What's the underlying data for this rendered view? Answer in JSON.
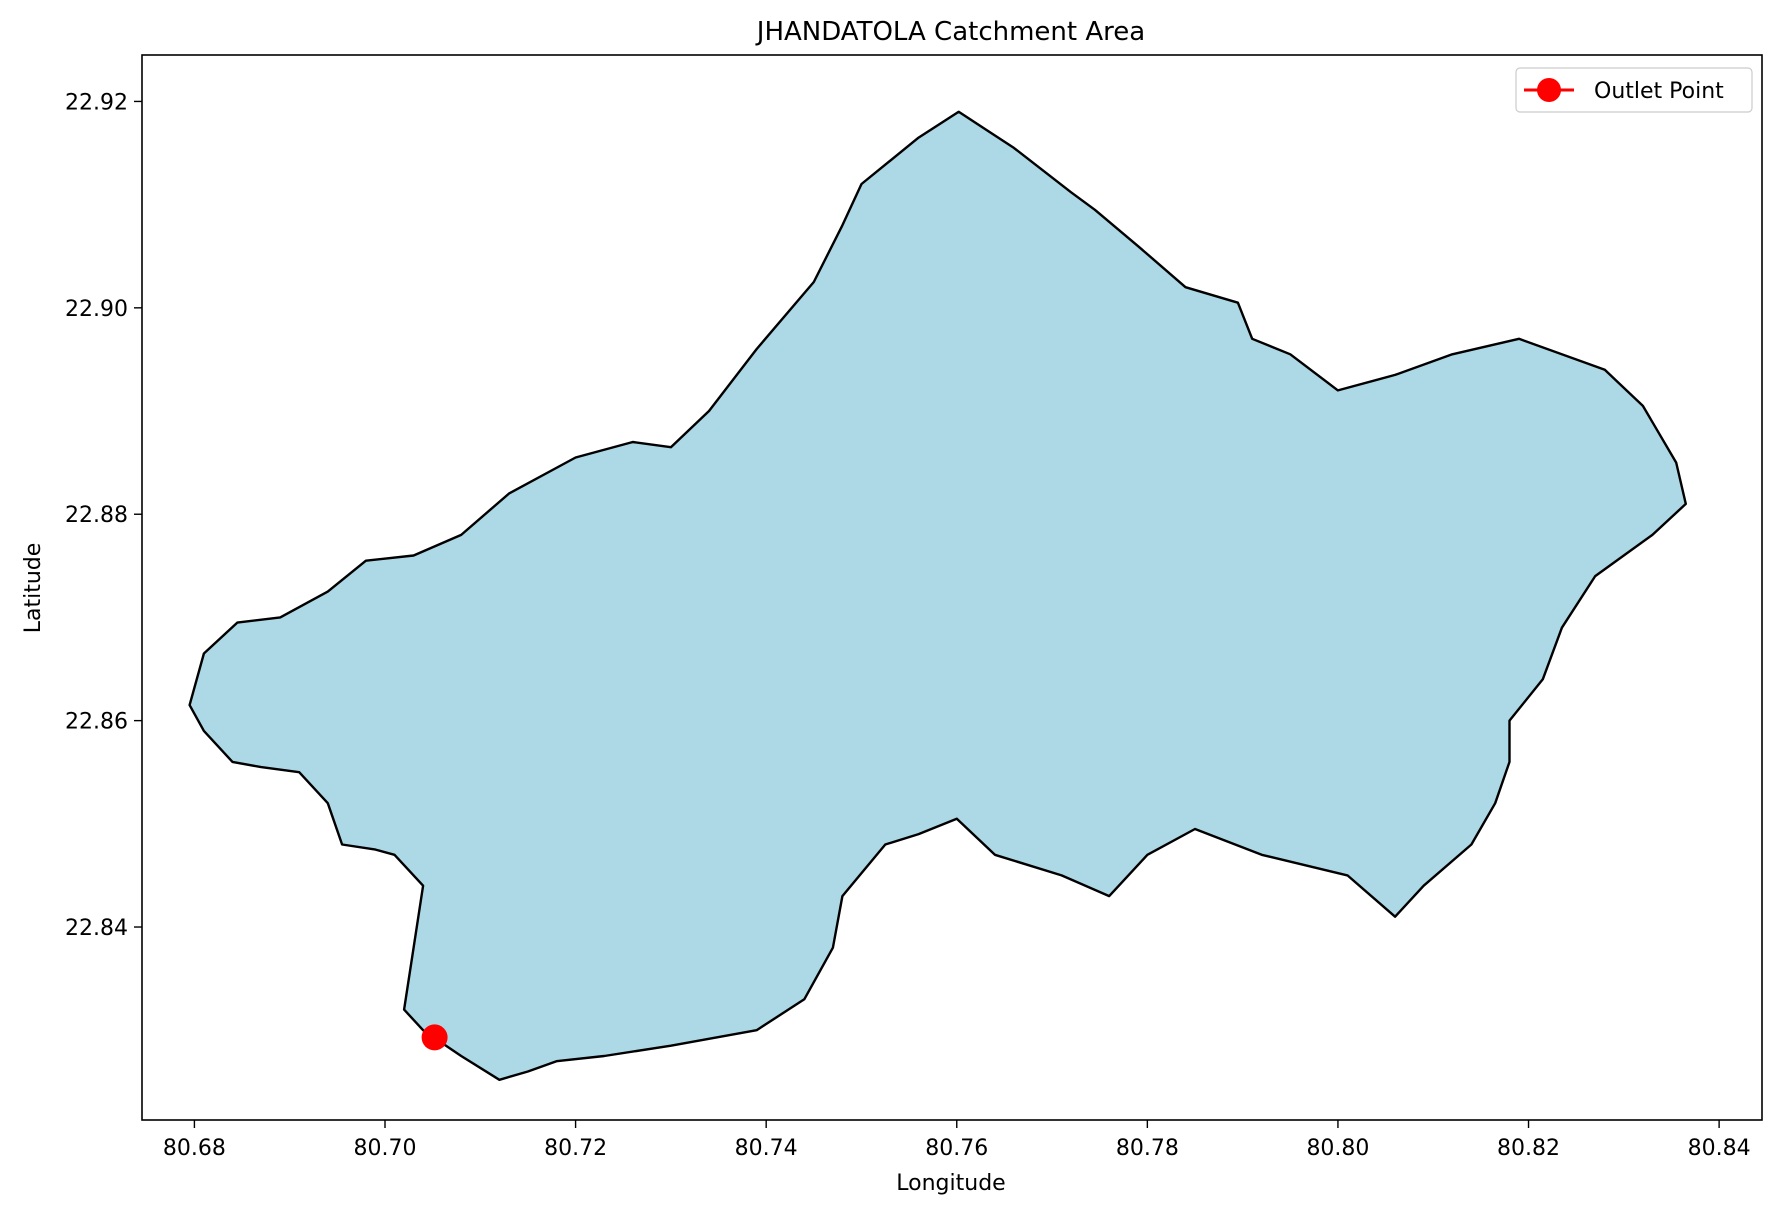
{
  "chart_data": {
    "type": "map",
    "title": "JHANDATOLA Catchment Area",
    "xlabel": "Longitude",
    "ylabel": "Latitude",
    "xlim": [
      80.6745,
      80.8445
    ],
    "ylim": [
      22.8213,
      22.9245
    ],
    "x_ticks": [
      80.68,
      80.7,
      80.72,
      80.74,
      80.76,
      80.78,
      80.8,
      80.82,
      80.84
    ],
    "x_tick_labels": [
      "80.68",
      "80.70",
      "80.72",
      "80.74",
      "80.76",
      "80.78",
      "80.80",
      "80.82",
      "80.84"
    ],
    "y_ticks": [
      22.84,
      22.86,
      22.88,
      22.9,
      22.92
    ],
    "y_tick_labels": [
      "22.84",
      "22.86",
      "22.88",
      "22.90",
      "22.92"
    ],
    "grid": false,
    "legend": {
      "placement": "top-right",
      "entries": [
        "Outlet Point"
      ]
    },
    "colors": {
      "catchment_fill": "#add8e6",
      "boundary": "#000000",
      "outlet": "#ff0000"
    },
    "catchment_boundary": [
      [
        80.7602,
        22.919
      ],
      [
        80.766,
        22.9155
      ],
      [
        80.772,
        22.9112
      ],
      [
        80.7745,
        22.9095
      ],
      [
        80.779,
        22.906
      ],
      [
        80.784,
        22.902
      ],
      [
        80.7895,
        22.9005
      ],
      [
        80.791,
        22.897
      ],
      [
        80.795,
        22.8955
      ],
      [
        80.8,
        22.892
      ],
      [
        80.806,
        22.8935
      ],
      [
        80.812,
        22.8955
      ],
      [
        80.819,
        22.897
      ],
      [
        80.828,
        22.894
      ],
      [
        80.832,
        22.8905
      ],
      [
        80.8355,
        22.885
      ],
      [
        80.8365,
        22.881
      ],
      [
        80.833,
        22.878
      ],
      [
        80.827,
        22.874
      ],
      [
        80.8235,
        22.869
      ],
      [
        80.8215,
        22.864
      ],
      [
        80.818,
        22.86
      ],
      [
        80.818,
        22.856
      ],
      [
        80.8165,
        22.852
      ],
      [
        80.814,
        22.848
      ],
      [
        80.809,
        22.844
      ],
      [
        80.806,
        22.841
      ],
      [
        80.801,
        22.845
      ],
      [
        80.792,
        22.847
      ],
      [
        80.785,
        22.8495
      ],
      [
        80.78,
        22.847
      ],
      [
        80.776,
        22.843
      ],
      [
        80.771,
        22.845
      ],
      [
        80.764,
        22.847
      ],
      [
        80.76,
        22.8505
      ],
      [
        80.756,
        22.849
      ],
      [
        80.7525,
        22.848
      ],
      [
        80.748,
        22.843
      ],
      [
        80.747,
        22.838
      ],
      [
        80.744,
        22.833
      ],
      [
        80.739,
        22.83
      ],
      [
        80.73,
        22.8285
      ],
      [
        80.723,
        22.8275
      ],
      [
        80.718,
        22.827
      ],
      [
        80.715,
        22.826
      ],
      [
        80.712,
        22.8252
      ],
      [
        80.708,
        22.8275
      ],
      [
        80.704,
        22.83
      ],
      [
        80.702,
        22.832
      ],
      [
        80.703,
        22.838
      ],
      [
        80.704,
        22.844
      ],
      [
        80.701,
        22.847
      ],
      [
        80.699,
        22.8475
      ],
      [
        80.6955,
        22.848
      ],
      [
        80.694,
        22.852
      ],
      [
        80.691,
        22.855
      ],
      [
        80.687,
        22.8555
      ],
      [
        80.684,
        22.856
      ],
      [
        80.681,
        22.859
      ],
      [
        80.6795,
        22.8615
      ],
      [
        80.681,
        22.8665
      ],
      [
        80.6845,
        22.8695
      ],
      [
        80.689,
        22.87
      ],
      [
        80.694,
        22.8725
      ],
      [
        80.698,
        22.8755
      ],
      [
        80.703,
        22.876
      ],
      [
        80.708,
        22.878
      ],
      [
        80.713,
        22.882
      ],
      [
        80.72,
        22.8855
      ],
      [
        80.726,
        22.887
      ],
      [
        80.73,
        22.8865
      ],
      [
        80.734,
        22.89
      ],
      [
        80.739,
        22.896
      ],
      [
        80.745,
        22.9025
      ],
      [
        80.748,
        22.908
      ],
      [
        80.75,
        22.912
      ],
      [
        80.756,
        22.9165
      ]
    ],
    "outlet_point": {
      "lon": 80.7052,
      "lat": 22.8293,
      "label": "Outlet Point"
    }
  }
}
